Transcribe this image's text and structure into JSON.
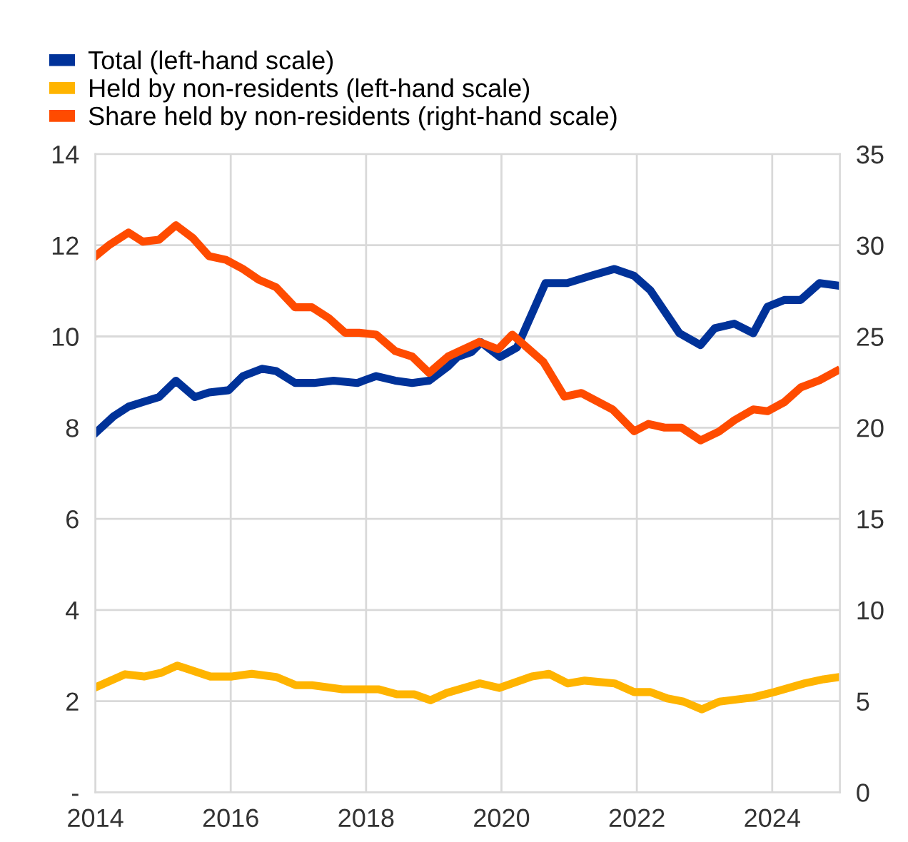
{
  "chart_data": {
    "type": "line",
    "legend": "top",
    "grid": true,
    "xlim": [
      2014,
      2025
    ],
    "xticks": [
      2014,
      2016,
      2018,
      2020,
      2022,
      2024
    ],
    "ylim": [
      0,
      14
    ],
    "yticks": [
      {
        "value": 0,
        "label": "-"
      },
      2,
      4,
      6,
      8,
      10,
      12,
      14
    ],
    "y2lim": [
      0,
      35
    ],
    "y2ticks": [
      0,
      5,
      10,
      15,
      20,
      25,
      30,
      35
    ],
    "series": [
      {
        "name": "Total (left-hand scale)",
        "color": "#003299",
        "x": [
          2014.0,
          2014.27,
          2014.49,
          2014.7,
          2014.94,
          2015.19,
          2015.47,
          2015.68,
          2015.97,
          2016.18,
          2016.46,
          2016.67,
          2016.95,
          2017.23,
          2017.52,
          2017.87,
          2018.15,
          2018.43,
          2018.68,
          2018.93,
          2019.21,
          2019.35,
          2019.56,
          2019.7,
          2019.98,
          2020.23,
          2020.65,
          2020.97,
          2021.32,
          2021.67,
          2021.96,
          2022.2,
          2022.63,
          2022.94,
          2023.15,
          2023.44,
          2023.72,
          2023.93,
          2024.18,
          2024.42,
          2024.7,
          2024.95
        ],
        "values": [
          7.88,
          8.25,
          8.46,
          8.56,
          8.67,
          9.03,
          8.67,
          8.77,
          8.82,
          9.13,
          9.29,
          9.24,
          8.98,
          8.98,
          9.03,
          8.98,
          9.13,
          9.03,
          8.98,
          9.03,
          9.34,
          9.55,
          9.66,
          9.87,
          9.55,
          9.76,
          11.17,
          11.17,
          11.33,
          11.48,
          11.33,
          11.01,
          10.07,
          9.81,
          10.18,
          10.28,
          10.07,
          10.65,
          10.8,
          10.8,
          11.17,
          11.12
        ]
      },
      {
        "name": "Held by non-residents (left-hand scale)",
        "color": "#ffb400",
        "x": [
          2014.0,
          2014.44,
          2014.72,
          2014.97,
          2015.21,
          2015.7,
          2016.02,
          2016.31,
          2016.67,
          2016.96,
          2017.2,
          2017.65,
          2018.18,
          2018.46,
          2018.71,
          2018.95,
          2019.19,
          2019.68,
          2019.97,
          2020.45,
          2020.7,
          2020.98,
          2021.23,
          2021.67,
          2021.96,
          2022.2,
          2022.45,
          2022.69,
          2022.96,
          2023.22,
          2023.71,
          2024.03,
          2024.48,
          2024.76,
          2025.0
        ],
        "values": [
          2.3,
          2.59,
          2.54,
          2.62,
          2.78,
          2.54,
          2.54,
          2.6,
          2.53,
          2.35,
          2.35,
          2.26,
          2.26,
          2.15,
          2.15,
          2.02,
          2.18,
          2.39,
          2.29,
          2.54,
          2.6,
          2.39,
          2.45,
          2.39,
          2.2,
          2.2,
          2.06,
          1.99,
          1.82,
          1.99,
          2.08,
          2.2,
          2.39,
          2.48,
          2.53
        ]
      },
      {
        "name": "Share held by non-residents (right-hand scale)",
        "color": "#ff4b00",
        "axis": "y2",
        "x": [
          2014.0,
          2014.2,
          2014.49,
          2014.7,
          2014.94,
          2015.19,
          2015.44,
          2015.68,
          2015.93,
          2016.18,
          2016.42,
          2016.67,
          2016.95,
          2017.2,
          2017.45,
          2017.69,
          2017.9,
          2018.15,
          2018.43,
          2018.68,
          2018.93,
          2019.21,
          2019.67,
          2019.95,
          2020.16,
          2020.62,
          2020.93,
          2021.18,
          2021.64,
          2021.96,
          2022.17,
          2022.41,
          2022.66,
          2022.94,
          2023.22,
          2023.44,
          2023.72,
          2023.93,
          2024.18,
          2024.42,
          2024.7,
          2024.95
        ],
        "values": [
          29.4,
          30.0,
          30.7,
          30.2,
          30.3,
          31.1,
          30.4,
          29.4,
          29.2,
          28.7,
          28.1,
          27.7,
          26.6,
          26.6,
          26.0,
          25.2,
          25.2,
          25.1,
          24.2,
          23.9,
          23.0,
          23.9,
          24.7,
          24.3,
          25.1,
          23.6,
          21.7,
          21.9,
          21.0,
          19.8,
          20.2,
          20.0,
          20.0,
          19.3,
          19.8,
          20.4,
          21.0,
          20.9,
          21.4,
          22.2,
          22.6,
          23.1
        ]
      }
    ]
  }
}
